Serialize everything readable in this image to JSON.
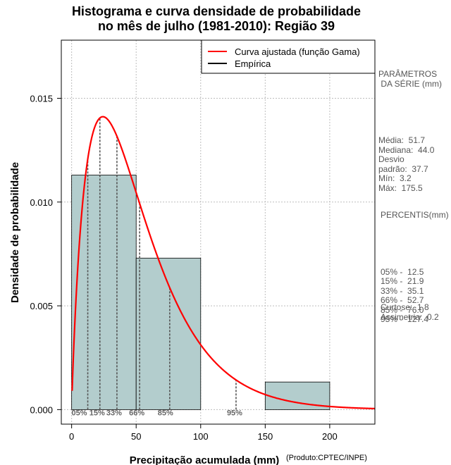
{
  "title_line1": "Histograma e curva densidade de probabilidade",
  "title_line2": "no mês de julho (1981-2010): Região 39",
  "chart_data": {
    "type": "histogram",
    "xlabel": "Precipitação acumulada (mm)",
    "ylabel": "Densidade de probabilidade",
    "credit": "(Produto:CPTEC/INPE)",
    "xlim": [
      -8,
      235
    ],
    "ylim": [
      -0.0007,
      0.0178
    ],
    "x_ticks": [
      0,
      50,
      100,
      150,
      200
    ],
    "y_ticks": [
      0.0,
      0.005,
      0.01,
      0.015
    ],
    "y_tick_labels": [
      "0.000",
      "0.005",
      "0.010",
      "0.015"
    ],
    "grid": true,
    "bars": [
      {
        "x0": 0,
        "x1": 50,
        "density": 0.0113
      },
      {
        "x0": 50,
        "x1": 100,
        "density": 0.0073
      },
      {
        "x0": 100,
        "x1": 150,
        "density": 0.0
      },
      {
        "x0": 150,
        "x1": 200,
        "density": 0.00133
      }
    ],
    "bar_color": "#b3cdcd",
    "fitted_curve": {
      "name": "Curva ajustada (função Gama)",
      "shape": 1.88,
      "scale": 27.5,
      "color": "#ff0000"
    },
    "legend": [
      {
        "label": "Curva ajustada (função Gama)",
        "color": "#ff0000"
      },
      {
        "label": "Empírica",
        "color": "#000000"
      }
    ],
    "percentiles": [
      {
        "label": "05%",
        "value": 12.5
      },
      {
        "label": "15%",
        "value": 21.9
      },
      {
        "label": "33%",
        "value": 35.1
      },
      {
        "label": "66%",
        "value": 52.7
      },
      {
        "label": "85%",
        "value": 76.0
      },
      {
        "label": "95%",
        "value": 127.4
      }
    ]
  },
  "stats_panel": {
    "params_title": "PARÂMETROS\n DA SÉRIE (mm)",
    "params_text": "Média:  51.7\nMediana:  44.0\nDesvio\npadrão:  37.7\nMín:  3.2\nMáx:  175.5",
    "percentis_title": "PERCENTIS(mm)",
    "percentis_text": "05% -  12.5\n15% -  21.9\n33% -  35.1\n66% -  52.7\n85% -  76.0\n95% -  127.4",
    "extra_text": "Curtose:  1.8\nAssimetria:  0.2"
  }
}
